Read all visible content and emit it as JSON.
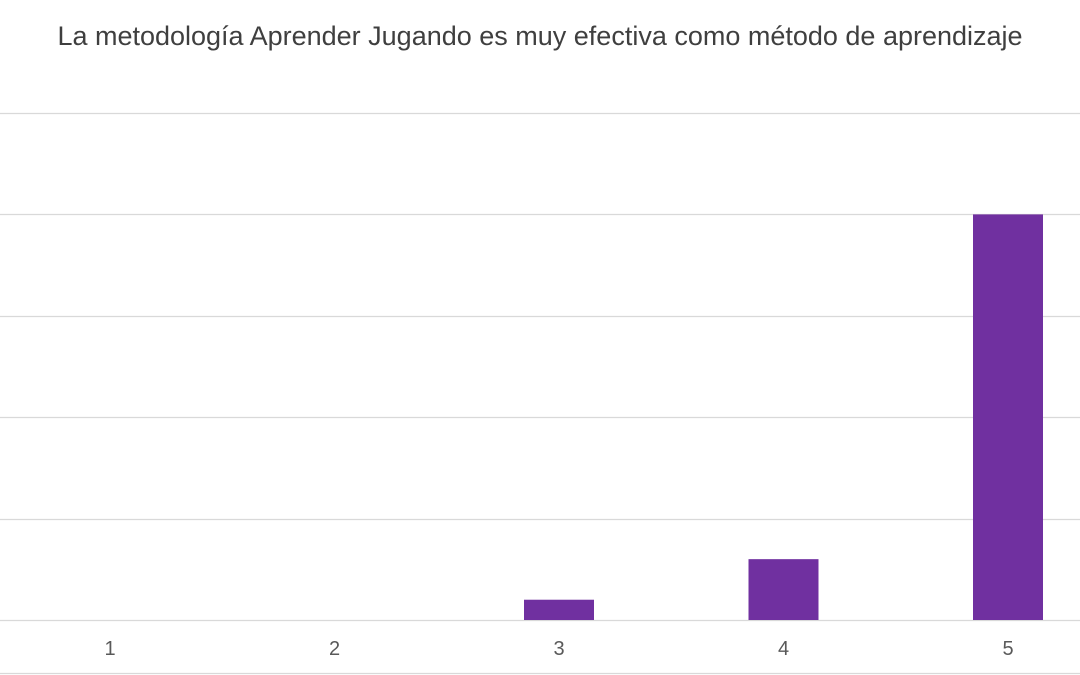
{
  "chart_data": {
    "type": "bar",
    "title": "La metodología Aprender Jugando es muy efectiva como método de aprendizaje",
    "xlabel": "",
    "ylabel": "",
    "categories": [
      "1",
      "2",
      "3",
      "4",
      "5"
    ],
    "values": [
      0,
      0,
      1,
      3,
      20
    ],
    "ylim": [
      0,
      25
    ],
    "y_gridline_step": 5,
    "y_tick_labels_visible": false,
    "grid": true,
    "legend": "none",
    "colors": {
      "bar": "#7030a0",
      "grid": "#d9d9d9",
      "text": "#595959",
      "title": "#3f3f3f"
    }
  }
}
